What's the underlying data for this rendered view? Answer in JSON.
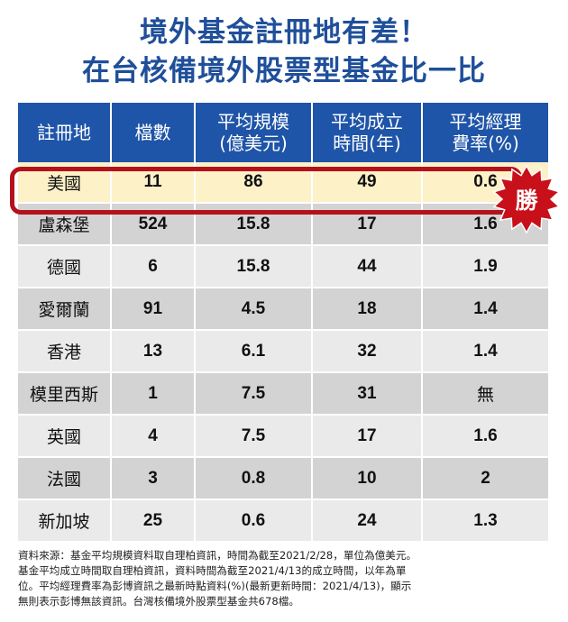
{
  "title": {
    "line1": "境外基金註冊地有差！",
    "line2": "在台核備境外股票型基金比一比"
  },
  "table": {
    "headers": [
      [
        "註冊地"
      ],
      [
        "檔數"
      ],
      [
        "平均規模",
        "(億美元)"
      ],
      [
        "平均成立",
        "時間(年)"
      ],
      [
        "平均經理",
        "費率(%)"
      ]
    ],
    "rows": [
      [
        "美國",
        "11",
        "86",
        "49",
        "0.6"
      ],
      [
        "盧森堡",
        "524",
        "15.8",
        "17",
        "1.6"
      ],
      [
        "德國",
        "6",
        "15.8",
        "44",
        "1.9"
      ],
      [
        "愛爾蘭",
        "91",
        "4.5",
        "18",
        "1.4"
      ],
      [
        "香港",
        "13",
        "6.1",
        "32",
        "1.4"
      ],
      [
        "模里西斯",
        "1",
        "7.5",
        "31",
        "無"
      ],
      [
        "英國",
        "4",
        "7.5",
        "17",
        "1.6"
      ],
      [
        "法國",
        "3",
        "0.8",
        "10",
        "2"
      ],
      [
        "新加坡",
        "25",
        "0.6",
        "24",
        "1.3"
      ]
    ]
  },
  "badge": {
    "label": "勝",
    "color": "#c8101a"
  },
  "source": {
    "lines": [
      "資料來源：基金平均規模資料取自理柏資訊，時間為截至2021/2/28，單位為億美元。",
      "基金平均成立時間取自理柏資訊，資料時間為截至2021/4/13的成立時間，以年為單",
      "位。平均經理費率為彭博資訊之最新時點資料(%)(最新更新時間：2021/4/13)，顯示",
      "無則表示彭博無該資訊。台灣核備境外股票型基金共678檔。"
    ]
  },
  "colors": {
    "title": "#1f4f9a",
    "header": "#1f55a8",
    "highlight_row": "#fdf1c8",
    "row_light": "#eaeaea",
    "row_dark": "#d3d3d3",
    "highlight_border": "#b3121c"
  }
}
